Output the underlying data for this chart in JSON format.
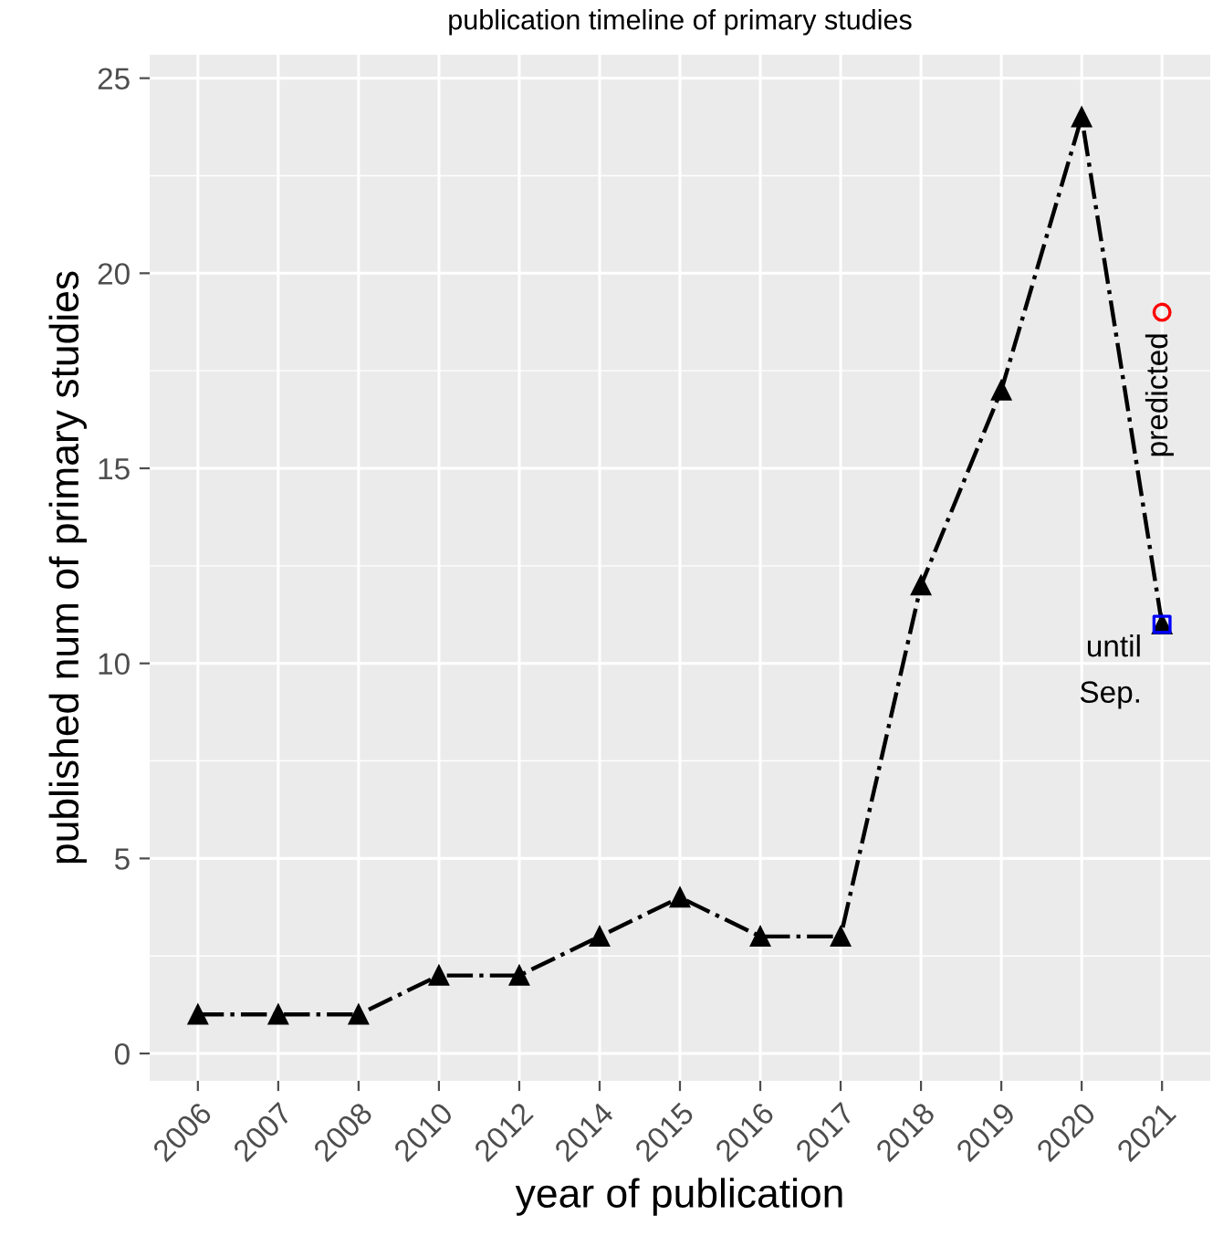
{
  "chart_data": {
    "type": "line",
    "title": "publication timeline of primary studies",
    "xlabel": "year of publication",
    "ylabel": "published num of primary studies",
    "categories": [
      "2006",
      "2007",
      "2008",
      "2010",
      "2012",
      "2014",
      "2015",
      "2016",
      "2017",
      "2018",
      "2019",
      "2020",
      "2021"
    ],
    "series": [
      {
        "color": "#000000",
        "marker": "triangle",
        "line_style": "dashed",
        "values": [
          1,
          1,
          1,
          2,
          2,
          3,
          4,
          3,
          3,
          12,
          17,
          24,
          11
        ]
      },
      {
        "type": "scatter",
        "color": "#ff0000",
        "marker": "circle",
        "values": [
          null,
          null,
          null,
          null,
          null,
          null,
          null,
          null,
          null,
          null,
          null,
          null,
          19
        ]
      },
      {
        "type": "scatter",
        "color": "#0000ff",
        "marker": "square",
        "values": [
          null,
          null,
          null,
          null,
          null,
          null,
          null,
          null,
          null,
          null,
          null,
          null,
          11
        ]
      }
    ],
    "annotations": [
      {
        "text": "predicted",
        "x": "2021",
        "y": 19
      },
      {
        "text": "until\nSep.",
        "x": "2021",
        "y": 11
      }
    ],
    "ylim": [
      -0.7,
      25.6
    ],
    "yticks": [
      0,
      5,
      10,
      15,
      20,
      25
    ],
    "grid": true
  }
}
